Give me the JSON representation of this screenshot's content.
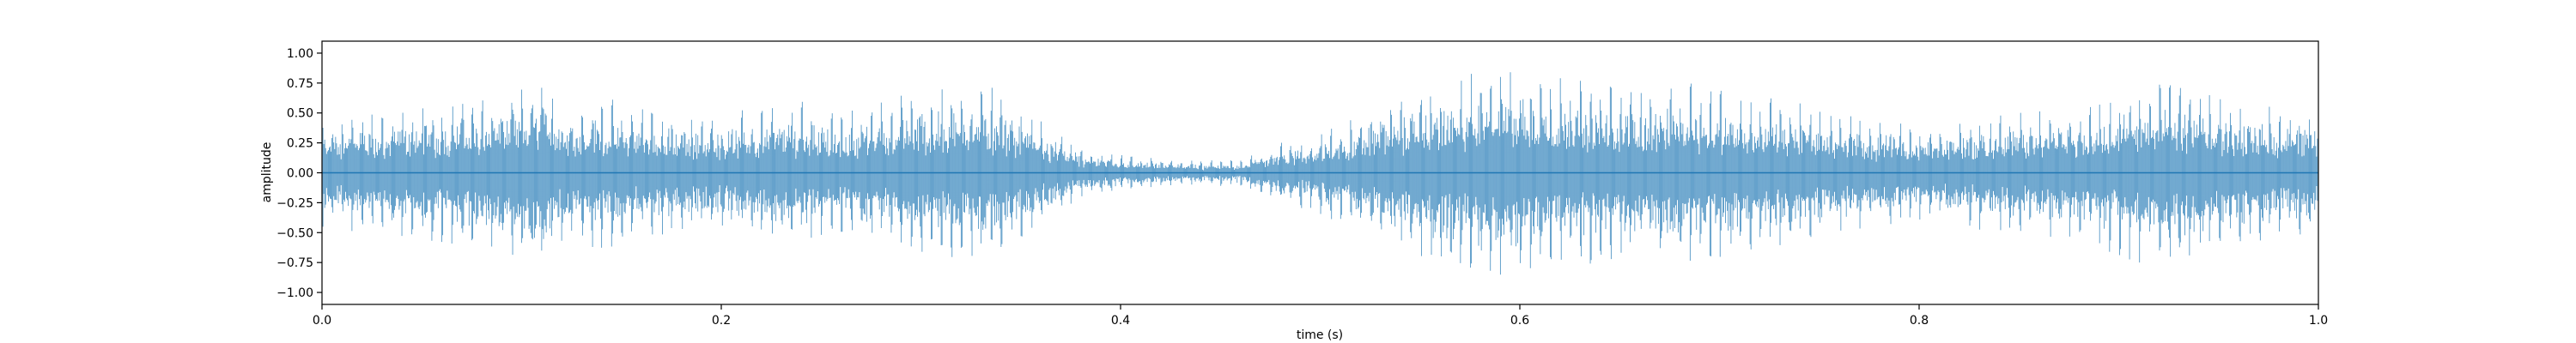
{
  "chart_data": {
    "type": "line",
    "title": "",
    "xlabel": "time (s)",
    "ylabel": "amplitude",
    "xlim": [
      0.0,
      1.0
    ],
    "ylim": [
      -1.1,
      1.1
    ],
    "xticks": [
      0.0,
      0.2,
      0.4,
      0.6,
      0.8,
      1.0
    ],
    "xtick_labels": [
      "0.0",
      "0.2",
      "0.4",
      "0.6",
      "0.8",
      "1.0"
    ],
    "yticks": [
      1.0,
      0.75,
      0.5,
      0.25,
      0.0,
      -0.25,
      -0.5,
      -0.75,
      -1.0
    ],
    "ytick_labels": [
      "1.00",
      "0.75",
      "0.50",
      "0.25",
      "0.00",
      "−0.25",
      "−0.50",
      "−0.75",
      "−1.00"
    ],
    "grid": false,
    "legend": "none",
    "colors": {
      "series": "#1f77b4",
      "axes": "#000000",
      "background": "#ffffff"
    },
    "series": [
      {
        "style": "dense waveform, envelope (max |amplitude|) vs time",
        "x": [
          0.0,
          0.02,
          0.04,
          0.06,
          0.08,
          0.1,
          0.11,
          0.12,
          0.14,
          0.16,
          0.18,
          0.2,
          0.22,
          0.24,
          0.26,
          0.28,
          0.3,
          0.32,
          0.34,
          0.36,
          0.38,
          0.4,
          0.42,
          0.44,
          0.46,
          0.48,
          0.5,
          0.52,
          0.54,
          0.56,
          0.58,
          0.6,
          0.62,
          0.64,
          0.66,
          0.68,
          0.7,
          0.72,
          0.74,
          0.76,
          0.78,
          0.8,
          0.82,
          0.84,
          0.86,
          0.88,
          0.9,
          0.92,
          0.94,
          0.96,
          0.98,
          1.0
        ],
        "y": [
          0.45,
          0.5,
          0.55,
          0.6,
          0.65,
          0.7,
          0.85,
          0.6,
          0.65,
          0.55,
          0.5,
          0.5,
          0.55,
          0.6,
          0.5,
          0.6,
          0.7,
          0.75,
          0.7,
          0.45,
          0.2,
          0.15,
          0.12,
          0.1,
          0.12,
          0.25,
          0.35,
          0.5,
          0.65,
          0.75,
          0.85,
          0.88,
          0.8,
          0.75,
          0.7,
          0.75,
          0.75,
          0.65,
          0.6,
          0.5,
          0.45,
          0.4,
          0.45,
          0.5,
          0.55,
          0.55,
          0.7,
          0.8,
          0.7,
          0.6,
          0.55,
          0.5
        ]
      }
    ]
  }
}
